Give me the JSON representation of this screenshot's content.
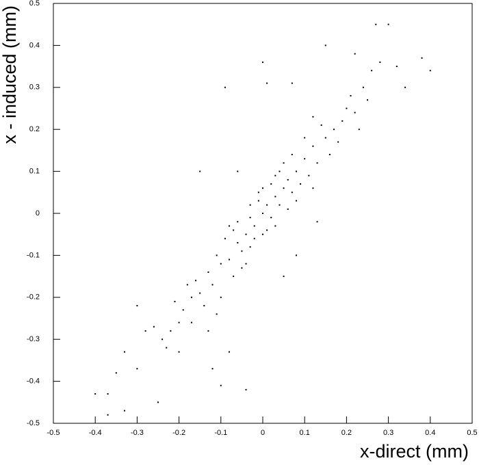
{
  "chart_data": {
    "type": "scatter",
    "x_label": "x-direct (mm)",
    "y_label": "x - induced (mm)",
    "xlim": [
      -0.5,
      0.5
    ],
    "ylim": [
      -0.5,
      0.5
    ],
    "xticks": [
      -0.5,
      -0.4,
      -0.3,
      -0.2,
      -0.1,
      0,
      0.1,
      0.2,
      0.3,
      0.4,
      0.5
    ],
    "yticks": [
      -0.5,
      -0.4,
      -0.3,
      -0.2,
      -0.1,
      0,
      0.1,
      0.2,
      0.3,
      0.4,
      0.5
    ],
    "color": "#000000",
    "x": [
      0,
      0.01,
      -0.02,
      0.03,
      -0.04,
      0.02,
      -0.01,
      0.05,
      -0.06,
      0.04,
      -0.03,
      0.06,
      -0.05,
      0.07,
      -0.07,
      0.08,
      -0.08,
      0.01,
      -0.01,
      0.03,
      -0.03,
      0.09,
      -0.09,
      0.05,
      -0.05,
      0.02,
      -0.02,
      0.1,
      -0.1,
      0.06,
      -0.06,
      0.04,
      -0.04,
      0,
      0,
      0.11,
      -0.11,
      0.07,
      -0.07,
      0.12,
      -0.12,
      0.08,
      -0.08,
      0.13,
      -0.13,
      0.03,
      -0.03,
      0.15,
      -0.15,
      0.17,
      -0.17,
      0.14,
      -0.14,
      0.19,
      -0.19,
      0.16,
      -0.16,
      0.2,
      -0.2,
      0.18,
      -0.18,
      0.22,
      -0.22,
      0.21,
      -0.21,
      0.24,
      -0.24,
      0.12,
      -0.11,
      0.1,
      -0.1,
      0.23,
      -0.23,
      0.26,
      -0.26,
      0.27,
      0.3,
      0.28,
      0.32,
      0.34,
      0.38,
      0.4,
      0.15,
      0,
      0.01,
      -0.09,
      0.07,
      -0.15,
      0.22,
      0.25,
      -0.28,
      -0.3,
      -0.33,
      -0.35,
      -0.37,
      -0.4,
      -0.37,
      -0.33,
      -0.25,
      -0.1,
      -0.12,
      -0.2,
      -0.04,
      -0.3,
      -0.17,
      0.05,
      0.13,
      -0.06,
      0.12,
      -0.13,
      0.08,
      -0.08
    ],
    "values": [
      0,
      0.02,
      -0.03,
      0.04,
      -0.05,
      -0.01,
      0.03,
      0.06,
      -0.07,
      0.02,
      -0.01,
      0.08,
      -0.09,
      0.05,
      -0.04,
      0.1,
      -0.11,
      -0.04,
      0.05,
      0.09,
      -0.08,
      0.07,
      -0.06,
      0.12,
      -0.13,
      0.07,
      -0.06,
      0.13,
      -0.12,
      0.01,
      -0.02,
      0.1,
      -0.12,
      -0.05,
      0.06,
      0.09,
      -0.1,
      0.14,
      -0.15,
      0.16,
      -0.17,
      0.03,
      -0.03,
      0.12,
      -0.14,
      -0.03,
      0.02,
      0.18,
      -0.19,
      0.2,
      -0.2,
      0.21,
      -0.22,
      0.22,
      -0.23,
      0.14,
      -0.16,
      0.25,
      -0.26,
      0.17,
      -0.17,
      0.24,
      -0.28,
      0.28,
      -0.21,
      0.3,
      -0.3,
      0.23,
      -0.24,
      0.18,
      -0.2,
      0.2,
      -0.32,
      0.34,
      -0.27,
      0.45,
      0.45,
      0.36,
      0.35,
      0.3,
      0.37,
      0.34,
      0.4,
      0.36,
      0.31,
      0.3,
      0.31,
      0.1,
      0.38,
      0.27,
      -0.28,
      -0.37,
      -0.33,
      -0.38,
      -0.43,
      -0.43,
      -0.48,
      -0.47,
      -0.45,
      -0.41,
      -0.37,
      -0.33,
      -0.42,
      -0.22,
      -0.26,
      -0.15,
      -0.02,
      0.1,
      0.06,
      -0.28,
      -0.1,
      -0.33
    ]
  }
}
